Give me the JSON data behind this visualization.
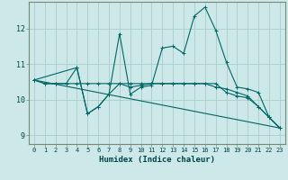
{
  "xlabel": "Humidex (Indice chaleur)",
  "bg_color": "#cce8e8",
  "grid_color": "#aacccc",
  "line_color": "#006666",
  "xlim": [
    -0.5,
    23.5
  ],
  "ylim": [
    8.75,
    12.75
  ],
  "xticks": [
    0,
    1,
    2,
    3,
    4,
    5,
    6,
    7,
    8,
    9,
    10,
    11,
    12,
    13,
    14,
    15,
    16,
    17,
    18,
    19,
    20,
    21,
    22,
    23
  ],
  "yticks": [
    9,
    10,
    11,
    12
  ],
  "line1_x": [
    0,
    1,
    2,
    3,
    4,
    5,
    6,
    7,
    8,
    9,
    10,
    11,
    12,
    13,
    14,
    15,
    16,
    17,
    18,
    19,
    20,
    21,
    22,
    23
  ],
  "line1_y": [
    10.55,
    10.45,
    10.45,
    10.45,
    10.9,
    9.6,
    9.8,
    10.15,
    11.85,
    10.15,
    10.35,
    10.4,
    11.45,
    11.5,
    11.3,
    12.35,
    12.6,
    11.95,
    11.05,
    10.35,
    10.3,
    10.2,
    9.5,
    9.2
  ],
  "line2_x": [
    0,
    1,
    2,
    3,
    4,
    5,
    6,
    7,
    8,
    9,
    10,
    11,
    12,
    13,
    14,
    15,
    16,
    17,
    18,
    19,
    20,
    21,
    22,
    23
  ],
  "line2_y": [
    10.55,
    10.45,
    10.45,
    10.45,
    10.45,
    10.45,
    10.45,
    10.45,
    10.45,
    10.45,
    10.45,
    10.45,
    10.45,
    10.45,
    10.45,
    10.45,
    10.45,
    10.45,
    10.2,
    10.1,
    10.05,
    9.8,
    9.5,
    9.2
  ],
  "line3_x": [
    0,
    4,
    5,
    6,
    7,
    8,
    9,
    10,
    11,
    12,
    13,
    14,
    15,
    16,
    17,
    18,
    19,
    20,
    21,
    22,
    23
  ],
  "line3_y": [
    10.55,
    10.9,
    9.6,
    9.8,
    10.15,
    10.45,
    10.35,
    10.4,
    10.45,
    10.45,
    10.45,
    10.45,
    10.45,
    10.45,
    10.35,
    10.3,
    10.2,
    10.1,
    9.8,
    9.5,
    9.2
  ],
  "line4_x": [
    0,
    23
  ],
  "line4_y": [
    10.55,
    9.2
  ]
}
